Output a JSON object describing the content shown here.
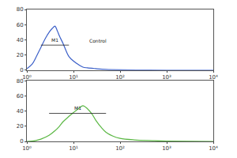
{
  "chart_data": [
    {
      "type": "line",
      "color": "#3b5fc8",
      "log": "x",
      "x": [
        1,
        1.3,
        1.6,
        2,
        2.5,
        3,
        3.5,
        4,
        4.5,
        5,
        6,
        7,
        8,
        10,
        13,
        16,
        20,
        30,
        50,
        100,
        300,
        1000,
        10000
      ],
      "values": [
        2,
        8,
        18,
        30,
        42,
        50,
        55,
        58,
        52,
        45,
        35,
        25,
        18,
        12,
        7,
        4,
        3,
        2,
        1,
        0.5,
        0.3,
        0,
        0
      ],
      "xlim": [
        1,
        10000
      ],
      "xticks": [
        {
          "value": 1,
          "label": "10⁰"
        },
        {
          "value": 10,
          "label": "10¹"
        },
        {
          "value": 100,
          "label": "10²"
        },
        {
          "value": 1000,
          "label": "10³"
        },
        {
          "value": 10000,
          "label": "10⁴"
        }
      ],
      "ylim": [
        0,
        80
      ],
      "yticks": [
        0,
        20,
        40,
        60,
        80
      ],
      "gates": [
        {
          "label": "M1",
          "x": [
            2,
            8
          ],
          "y": 33
        }
      ],
      "annotations": [
        {
          "text": "Control",
          "x": 20,
          "y": 33
        }
      ]
    },
    {
      "type": "line",
      "color": "#5cb845",
      "log": "x",
      "x": [
        1,
        1.5,
        2,
        3,
        4,
        5,
        6,
        8,
        10,
        12,
        14,
        16,
        20,
        25,
        30,
        40,
        50,
        70,
        100,
        200,
        500,
        1000,
        10000
      ],
      "values": [
        0,
        1,
        3,
        8,
        14,
        20,
        26,
        33,
        38,
        42,
        45,
        47,
        43,
        36,
        28,
        18,
        12,
        7,
        4,
        2,
        1,
        0.5,
        0
      ],
      "xlim": [
        1,
        10000
      ],
      "xticks": [
        {
          "value": 1,
          "label": "10⁰"
        },
        {
          "value": 10,
          "label": "10¹"
        },
        {
          "value": 100,
          "label": "10²"
        },
        {
          "value": 1000,
          "label": "10³"
        },
        {
          "value": 10000,
          "label": "10⁴"
        }
      ],
      "ylim": [
        0,
        80
      ],
      "yticks": [
        0,
        20,
        40,
        60,
        80
      ],
      "gates": [
        {
          "label": "M1",
          "x": [
            3,
            50
          ],
          "y": 37
        }
      ]
    }
  ]
}
